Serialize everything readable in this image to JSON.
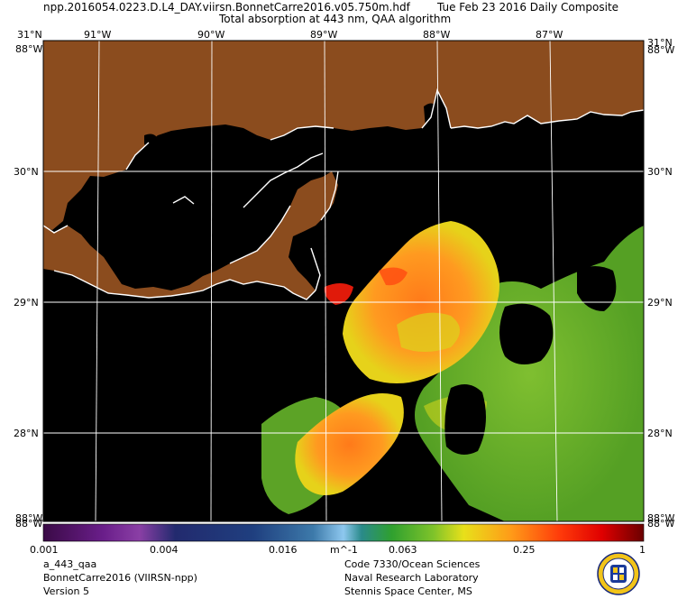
{
  "header": {
    "filename": "npp.2016054.0223.D.L4_DAY.viirsn.BonnetCarre2016.v05.750m.hdf",
    "date": "Tue Feb 23 2016 Daily Composite",
    "subtitle": "Total absorption at 443 nm, QAA algorithm"
  },
  "map": {
    "lon_labels_top": [
      "91°W",
      "90°W",
      "89°W",
      "88°W",
      "87°W"
    ],
    "lat_labels_left": [
      "31°N",
      "30°N",
      "29°N",
      "28°N"
    ],
    "lat_labels_right": [
      "31°N",
      "30°N",
      "29°N",
      "28°N"
    ],
    "corner_labels": {
      "top_left_upper": "31°N",
      "top_left_lower": "88°W",
      "top_right_upper": "31°N",
      "top_right_lower": "88°W",
      "bottom_left_upper": "88°W",
      "bottom_left_lower": "88°W",
      "bottom_right_upper": "88°W",
      "bottom_right_lower": "88°W"
    },
    "colors": {
      "land": "#8b4c1e",
      "water_nodata": "#000000",
      "coast": "#ffffff",
      "grid": "#ffffff"
    }
  },
  "colorbar": {
    "tick_labels": [
      "0.001",
      "0.004",
      "0.016",
      "m^-1",
      "0.063",
      "0.25",
      "1"
    ],
    "scale": "log",
    "range": [
      0.001,
      1
    ]
  },
  "footer": {
    "left": [
      "a_443_qaa",
      "BonnetCarre2016 (VIIRSN-npp)",
      "Version 5"
    ],
    "right": [
      "Code 7330/Ocean Sciences",
      "Naval Research Laboratory",
      "Stennis Space Center, MS"
    ]
  }
}
